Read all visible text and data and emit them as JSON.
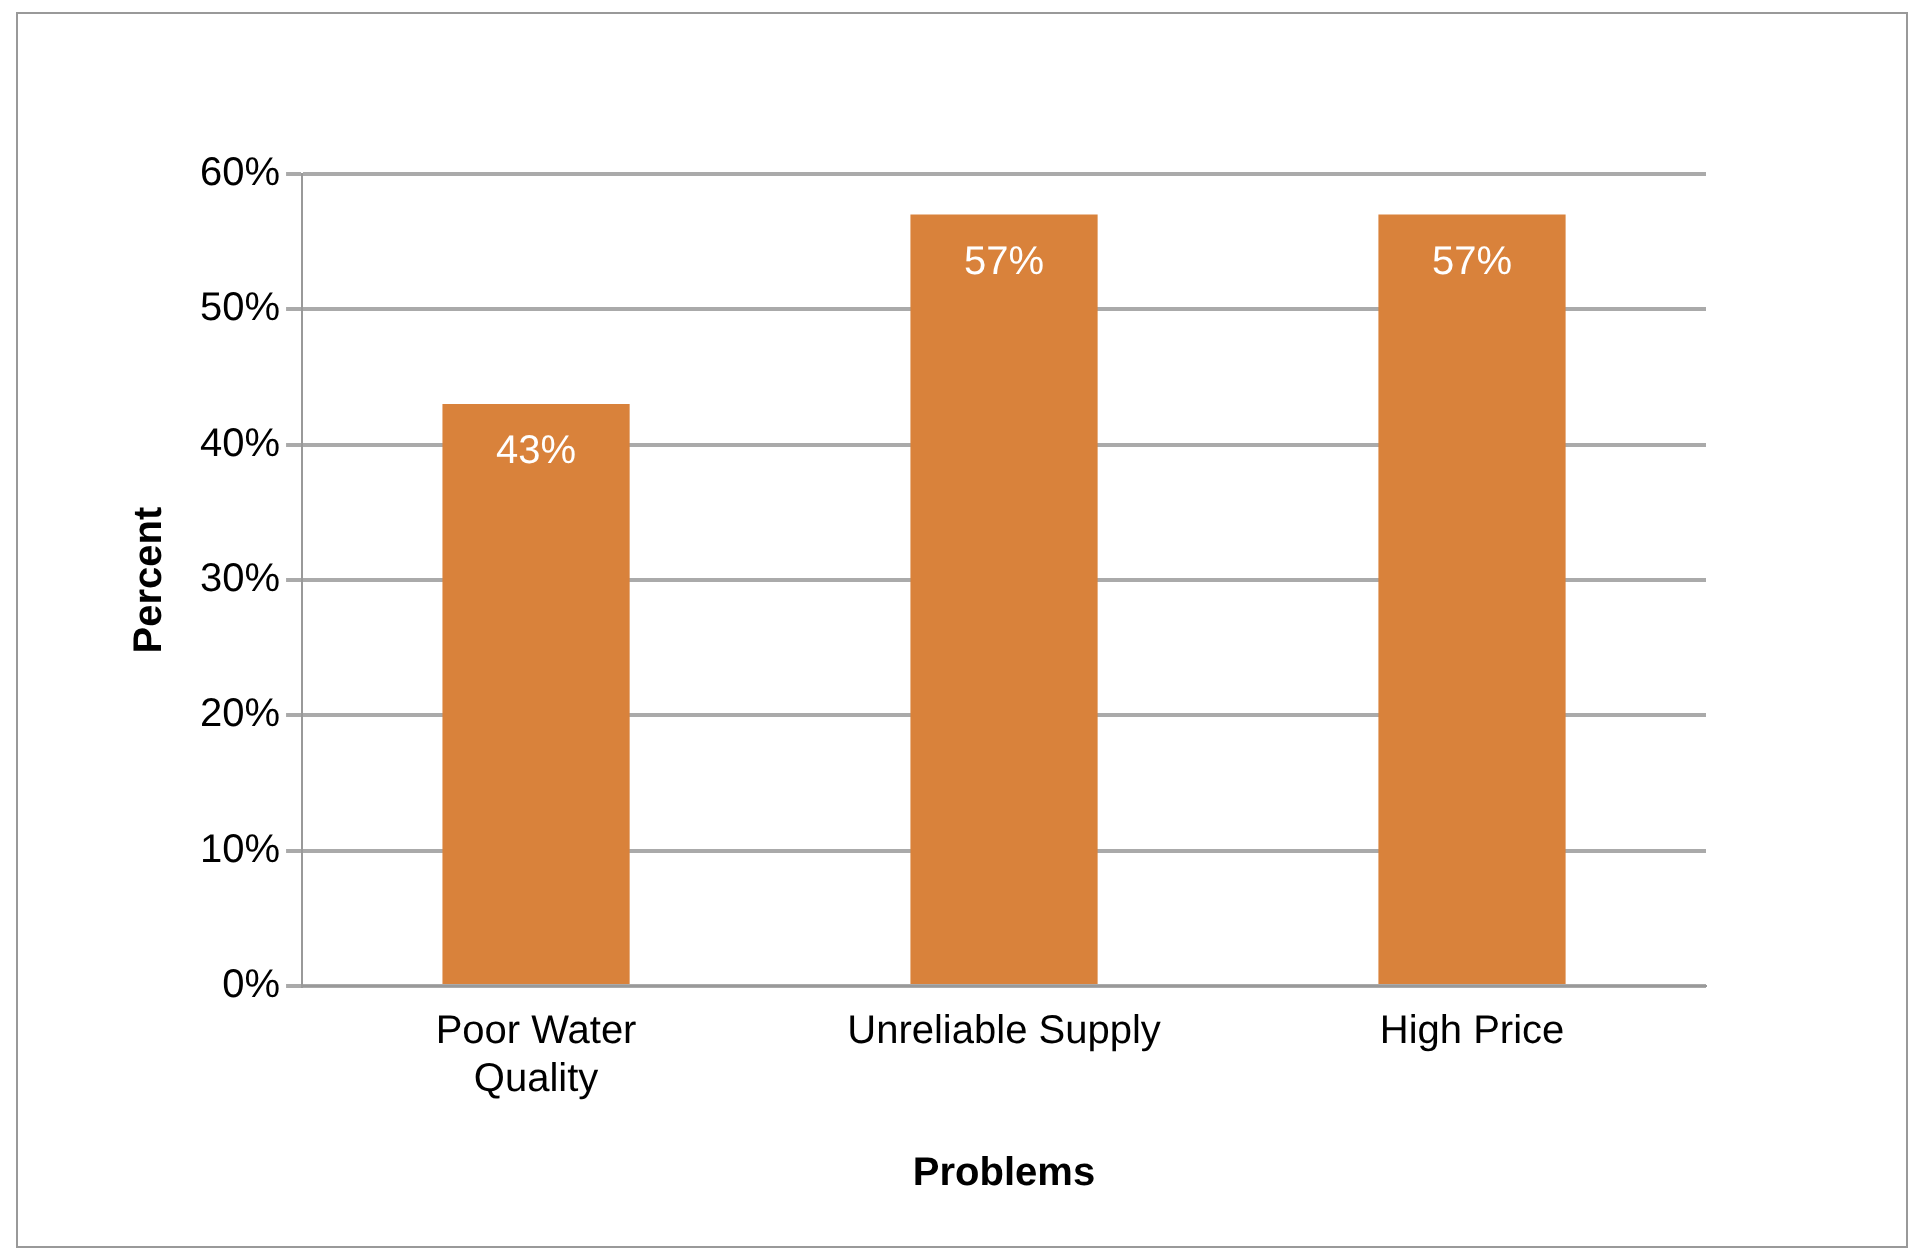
{
  "chart_data": {
    "type": "bar",
    "xlabel": "Problems",
    "ylabel": "Percent",
    "categories": [
      "Poor Water Quality",
      "Unreliable Supply",
      "High Price"
    ],
    "values": [
      43,
      57,
      57
    ],
    "value_labels": [
      "43%",
      "57%",
      "57%"
    ],
    "color": "#d9823b",
    "ylim": [
      0,
      60
    ],
    "yticks": [
      {
        "value": 0,
        "label": "0%"
      },
      {
        "value": 10,
        "label": "10%"
      },
      {
        "value": 20,
        "label": "20%"
      },
      {
        "value": 30,
        "label": "30%"
      },
      {
        "value": 40,
        "label": "40%"
      },
      {
        "value": 50,
        "label": "50%"
      },
      {
        "value": 60,
        "label": "60%"
      }
    ],
    "grid": "y",
    "legend": false
  }
}
